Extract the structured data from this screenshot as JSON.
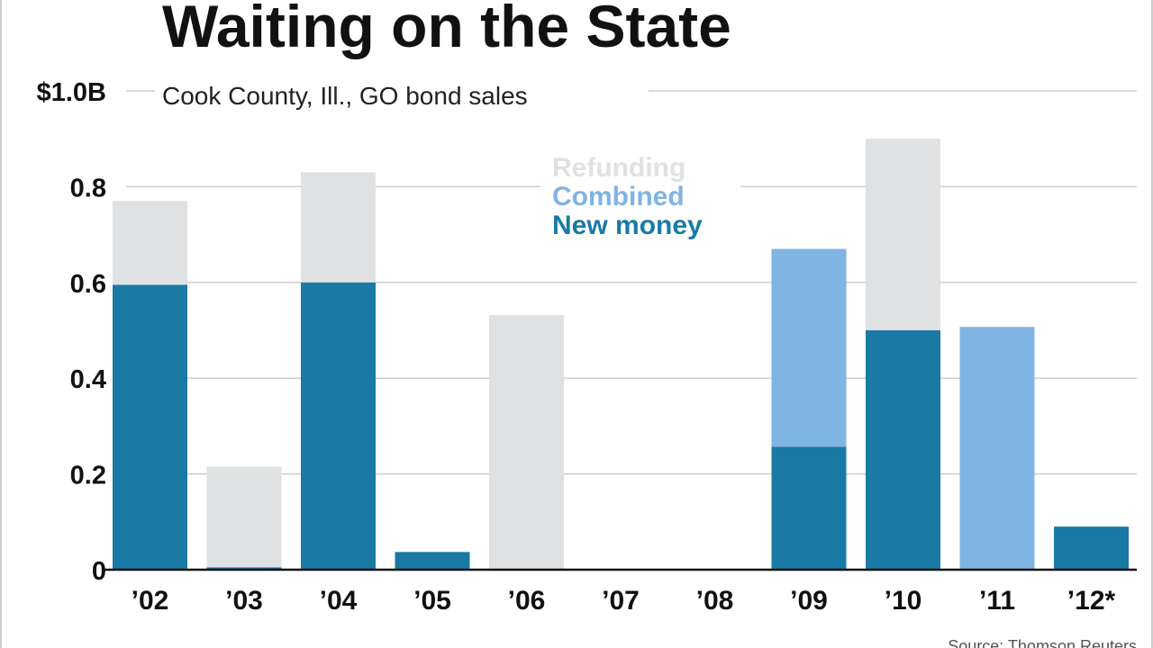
{
  "chart_data": {
    "type": "bar",
    "stacked": true,
    "title": "Waiting on the State",
    "subtitle": "Cook County, Ill., GO bond sales",
    "ylabel": "",
    "xlabel": "",
    "ylim": [
      0,
      1.0
    ],
    "y_ticks": [
      {
        "value": 0,
        "label": "0"
      },
      {
        "value": 0.2,
        "label": "0.2"
      },
      {
        "value": 0.4,
        "label": "0.4"
      },
      {
        "value": 0.6,
        "label": "0.6"
      },
      {
        "value": 0.8,
        "label": "0.8"
      },
      {
        "value": 1.0,
        "label": "$1.0B"
      }
    ],
    "categories": [
      "’02",
      "’03",
      "’04",
      "’05",
      "’06",
      "’07",
      "’08",
      "’09",
      "’10",
      "’11",
      "’12*"
    ],
    "series": [
      {
        "name": "New money",
        "color": "#1a7aa5",
        "values": [
          0.595,
          0.005,
          0.6,
          0.037,
          0,
          0,
          0,
          0.257,
          0.5,
          0,
          0.09
        ]
      },
      {
        "name": "Combined",
        "color": "#80b4e2",
        "values": [
          0,
          0,
          0,
          0,
          0,
          0,
          0,
          0.413,
          0,
          0.507,
          0
        ]
      },
      {
        "name": "Refunding",
        "color": "#e0e1e3",
        "values": [
          0.175,
          0.21,
          0.23,
          0,
          0.532,
          0,
          0,
          0,
          0.4,
          0,
          0
        ]
      }
    ],
    "legend": {
      "placement": "top-center",
      "order": [
        "Refunding",
        "Combined",
        "New money"
      ]
    },
    "grid": true,
    "footer_left": "",
    "footer_right": "Source: Thomson Reuters"
  }
}
